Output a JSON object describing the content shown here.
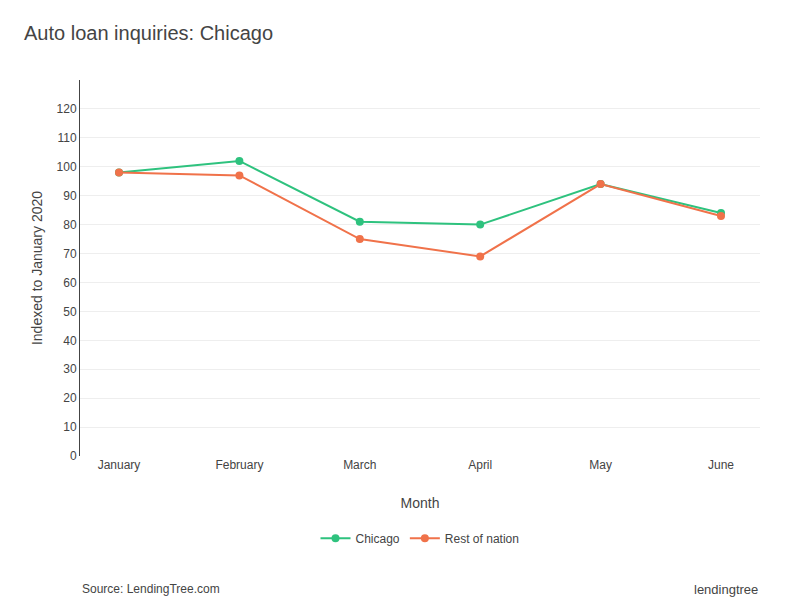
{
  "chart_data": {
    "type": "line",
    "title": "Auto loan inquiries: Chicago",
    "x_label": "Month",
    "y_label": "Indexed to January 2020",
    "categories": [
      "January",
      "February",
      "March",
      "April",
      "May",
      "June"
    ],
    "series": [
      {
        "name": "Chicago",
        "color": "#2ec27e",
        "values": [
          98,
          102,
          81,
          80,
          94,
          84
        ]
      },
      {
        "name": "Rest of nation",
        "color": "#f0724a",
        "values": [
          98,
          97,
          75,
          69,
          94,
          83
        ]
      }
    ],
    "ylim": [
      0,
      130
    ],
    "yticks": [
      0,
      10,
      20,
      30,
      40,
      50,
      60,
      70,
      80,
      90,
      100,
      110,
      120
    ],
    "grid": true,
    "legend": "bottom",
    "marker": "circle",
    "annotations": [
      "Source: LendingTree.com",
      "lendingtree"
    ]
  }
}
